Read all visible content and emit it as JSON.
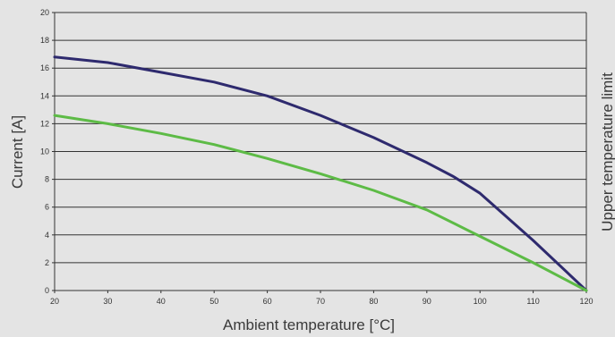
{
  "chart_data": {
    "type": "line",
    "title": "",
    "xlabel": "Ambient temperature [°C]",
    "ylabel": "Current [A]",
    "right_label": "Upper temperature limit",
    "xlim": [
      20,
      120
    ],
    "ylim": [
      0,
      20
    ],
    "x_ticks": [
      "20",
      "30",
      "40",
      "50",
      "60",
      "70",
      "80",
      "90",
      "100",
      "110",
      "120"
    ],
    "y_ticks": [
      "0",
      "2",
      "4",
      "6",
      "8",
      "10",
      "12",
      "14",
      "16",
      "18",
      "20"
    ],
    "grid": true,
    "legend": "none",
    "series": [
      {
        "color": "#2e2a6e",
        "x": [
          20,
          30,
          40,
          50,
          60,
          70,
          80,
          90,
          95,
          100,
          110,
          120
        ],
        "y": [
          16.8,
          16.4,
          15.7,
          15.0,
          14.0,
          12.6,
          11.0,
          9.2,
          8.2,
          7.0,
          3.6,
          0
        ]
      },
      {
        "color": "#5dbb46",
        "x": [
          20,
          30,
          40,
          50,
          60,
          70,
          80,
          90,
          100,
          110,
          120
        ],
        "y": [
          12.6,
          12.0,
          11.3,
          10.5,
          9.5,
          8.4,
          7.2,
          5.8,
          3.9,
          2.0,
          0
        ]
      }
    ]
  }
}
